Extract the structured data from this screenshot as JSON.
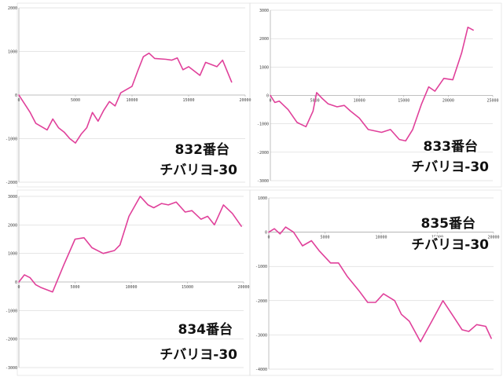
{
  "colors": {
    "line": "#e0409a",
    "grid": "#cccccc",
    "axis": "#999999",
    "frame": "#dddddd"
  },
  "chart_data": [
    {
      "type": "line",
      "machine": "832番台",
      "model": "チバリヨ-30",
      "xlim": [
        0,
        20000
      ],
      "ylim": [
        -2000,
        2000
      ],
      "xticks": [
        "0",
        "5000",
        "10000",
        "15000",
        "20000"
      ],
      "yticks": [
        "2000",
        "1000",
        "0",
        "-1000",
        "-2000"
      ],
      "grid": true,
      "x": [
        0,
        500,
        1000,
        1500,
        2500,
        3000,
        3500,
        4000,
        4500,
        5000,
        5500,
        6000,
        6500,
        7000,
        7500,
        8000,
        8500,
        9000,
        10000,
        10500,
        11000,
        11500,
        12000,
        13000,
        13500,
        14000,
        14500,
        15000,
        16000,
        16500,
        17500,
        18000,
        18800
      ],
      "y": [
        0,
        -200,
        -400,
        -650,
        -800,
        -550,
        -750,
        -850,
        -1000,
        -1100,
        -900,
        -750,
        -400,
        -600,
        -350,
        -150,
        -250,
        50,
        200,
        550,
        880,
        960,
        840,
        820,
        800,
        850,
        580,
        650,
        450,
        750,
        650,
        800,
        300
      ]
    },
    {
      "type": "line",
      "machine": "833番台",
      "model": "チバリヨ-30",
      "xlim": [
        0,
        25000
      ],
      "ylim": [
        -3000,
        3000
      ],
      "xticks": [
        "0",
        "5000",
        "10000",
        "15000",
        "20000",
        "25000"
      ],
      "yticks": [
        "3000",
        "2000",
        "1000",
        "0",
        "-1000",
        "-2000",
        "-3000"
      ],
      "grid": true,
      "x": [
        0,
        500,
        1000,
        2000,
        3000,
        4000,
        4800,
        5200,
        5800,
        6500,
        7500,
        8300,
        9000,
        10000,
        11000,
        12500,
        13500,
        14500,
        15200,
        16000,
        17000,
        17800,
        18500,
        19500,
        20500,
        21500,
        22200,
        22800
      ],
      "y": [
        0,
        -250,
        -200,
        -500,
        -950,
        -1100,
        -550,
        100,
        -100,
        -300,
        -400,
        -350,
        -550,
        -800,
        -1200,
        -1300,
        -1200,
        -1550,
        -1600,
        -1200,
        -300,
        300,
        150,
        600,
        550,
        1500,
        2400,
        2300
      ]
    },
    {
      "type": "line",
      "machine": "834番台",
      "model": "チバリヨ-30",
      "xlim": [
        0,
        20000
      ],
      "ylim": [
        -3000,
        3000
      ],
      "xticks": [
        "0",
        "5000",
        "10000",
        "15000",
        "20000"
      ],
      "yticks": [
        "3000",
        "2000",
        "1000",
        "0",
        "-1000",
        "-2000",
        "-3000"
      ],
      "grid": true,
      "x": [
        0,
        500,
        1000,
        1500,
        2000,
        3000,
        4000,
        5000,
        5800,
        6500,
        7500,
        8500,
        9000,
        9800,
        10800,
        11500,
        12000,
        12700,
        13300,
        14000,
        14800,
        15400,
        16200,
        16800,
        17400,
        18200,
        19000,
        19800
      ],
      "y": [
        0,
        250,
        150,
        -100,
        -200,
        -350,
        600,
        1500,
        1550,
        1200,
        1000,
        1100,
        1300,
        2300,
        3000,
        2700,
        2600,
        2750,
        2700,
        2800,
        2450,
        2500,
        2200,
        2300,
        2000,
        2700,
        2400,
        1950
      ]
    },
    {
      "type": "line",
      "machine": "835番台",
      "model": "チバリヨ-30",
      "xlim": [
        0,
        20000
      ],
      "ylim": [
        -4000,
        1000
      ],
      "xticks": [
        "0",
        "5000",
        "10000",
        "15000",
        "20000"
      ],
      "yticks": [
        "1000",
        "0",
        "-1000",
        "-2000",
        "-3000",
        "-4000"
      ],
      "grid": true,
      "x": [
        0,
        500,
        1000,
        1500,
        2200,
        3000,
        3800,
        4500,
        5500,
        6200,
        7000,
        8000,
        8800,
        9500,
        10200,
        11200,
        11800,
        12500,
        13500,
        14500,
        15500,
        16500,
        17200,
        17800,
        18500,
        19300,
        19800
      ],
      "y": [
        0,
        100,
        -50,
        150,
        0,
        -400,
        -250,
        -550,
        -900,
        -900,
        -1300,
        -1700,
        -2050,
        -2050,
        -1800,
        -2000,
        -2400,
        -2600,
        -3200,
        -2600,
        -2000,
        -2500,
        -2850,
        -2900,
        -2700,
        -2750,
        -3100
      ]
    }
  ]
}
